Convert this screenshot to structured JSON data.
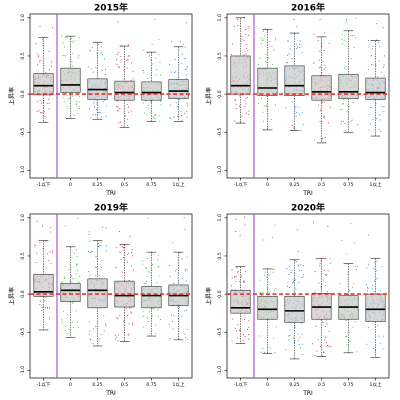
{
  "figure": {
    "colors": {
      "red": "#d2353f",
      "green": "#3fbf3f",
      "blue": "#2f8bd8",
      "box_fill": "#c8c8c8",
      "reference_line": "#e8342c",
      "threshold_line": "#a64ac9"
    }
  },
  "chart_data": [
    {
      "type": "box",
      "title": "2015年",
      "xlabel": "TRI",
      "ylabel": "上昇率",
      "categories": [
        "-1以下",
        "0",
        "0.25",
        "0.5",
        "0.75",
        "1以上"
      ],
      "yticks": [
        "-1.0",
        "-0.5",
        "0.0",
        "0.5",
        "1.0"
      ],
      "ylim": [
        -1.1,
        1.05
      ],
      "reference_line": 0.0,
      "threshold_between": [
        "-1以下",
        "0"
      ],
      "boxes": [
        {
          "category": "-1以下",
          "whisker_low": -0.37,
          "q1": -0.01,
          "median": 0.11,
          "q3": 0.27,
          "whisker_high": 0.74
        },
        {
          "category": "0",
          "whisker_low": -0.32,
          "q1": 0.02,
          "median": 0.12,
          "q3": 0.34,
          "whisker_high": 0.76
        },
        {
          "category": "0.25",
          "whisker_low": -0.33,
          "q1": -0.07,
          "median": 0.06,
          "q3": 0.2,
          "whisker_high": 0.68
        },
        {
          "category": "0.5",
          "whisker_low": -0.44,
          "q1": -0.08,
          "median": 0.02,
          "q3": 0.17,
          "whisker_high": 0.63
        },
        {
          "category": "0.75",
          "whisker_low": -0.36,
          "q1": -0.08,
          "median": 0.02,
          "q3": 0.16,
          "whisker_high": 0.55
        },
        {
          "category": "1以上",
          "whisker_low": -0.36,
          "q1": -0.06,
          "median": 0.04,
          "q3": 0.19,
          "whisker_high": 0.62
        }
      ]
    },
    {
      "type": "box",
      "title": "2016年",
      "xlabel": "TRI",
      "ylabel": "上昇率",
      "categories": [
        "-1以下",
        "0",
        "0.25",
        "0.5",
        "0.75",
        "1以上"
      ],
      "yticks": [
        "-1.0",
        "-0.5",
        "0.0",
        "0.5",
        "1.0"
      ],
      "ylim": [
        -1.1,
        1.05
      ],
      "reference_line": 0.0,
      "threshold_between": [
        "-1以下",
        "0"
      ],
      "boxes": [
        {
          "category": "-1以下",
          "whisker_low": -0.38,
          "q1": 0.0,
          "median": 0.11,
          "q3": 0.5,
          "whisker_high": 1.0
        },
        {
          "category": "0",
          "whisker_low": -0.47,
          "q1": -0.02,
          "median": 0.08,
          "q3": 0.34,
          "whisker_high": 0.85
        },
        {
          "category": "0.25",
          "whisker_low": -0.48,
          "q1": -0.02,
          "median": 0.11,
          "q3": 0.37,
          "whisker_high": 0.8
        },
        {
          "category": "0.5",
          "whisker_low": -0.64,
          "q1": -0.08,
          "median": 0.03,
          "q3": 0.24,
          "whisker_high": 0.75
        },
        {
          "category": "0.75",
          "whisker_low": -0.5,
          "q1": -0.06,
          "median": 0.03,
          "q3": 0.26,
          "whisker_high": 0.83
        },
        {
          "category": "1以上",
          "whisker_low": -0.55,
          "q1": -0.07,
          "median": 0.02,
          "q3": 0.21,
          "whisker_high": 0.7
        }
      ]
    },
    {
      "type": "box",
      "title": "2019年",
      "xlabel": "TRI",
      "ylabel": "上昇率",
      "categories": [
        "-1以下",
        "0",
        "0.25",
        "0.5",
        "0.75",
        "1以上"
      ],
      "yticks": [
        "-1.0",
        "-0.5",
        "0.0",
        "0.5",
        "1.0"
      ],
      "ylim": [
        -1.1,
        1.05
      ],
      "reference_line": 0.0,
      "threshold_between": [
        "-1以下",
        "0"
      ],
      "boxes": [
        {
          "category": "-1以下",
          "whisker_low": -0.47,
          "q1": -0.03,
          "median": 0.03,
          "q3": 0.26,
          "whisker_high": 0.7
        },
        {
          "category": "0",
          "whisker_low": -0.57,
          "q1": -0.1,
          "median": 0.05,
          "q3": 0.14,
          "whisker_high": 0.62
        },
        {
          "category": "0.25",
          "whisker_low": -0.68,
          "q1": -0.18,
          "median": 0.05,
          "q3": 0.2,
          "whisker_high": 0.7
        },
        {
          "category": "0.5",
          "whisker_low": -0.62,
          "q1": -0.17,
          "median": -0.02,
          "q3": 0.17,
          "whisker_high": 0.65
        },
        {
          "category": "0.75",
          "whisker_low": -0.55,
          "q1": -0.18,
          "median": -0.02,
          "q3": 0.1,
          "whisker_high": 0.55
        },
        {
          "category": "1以上",
          "whisker_low": -0.6,
          "q1": -0.15,
          "median": -0.02,
          "q3": 0.12,
          "whisker_high": 0.55
        }
      ]
    },
    {
      "type": "box",
      "title": "2020年",
      "xlabel": "TRI",
      "ylabel": "上昇率",
      "categories": [
        "-1以下",
        "0",
        "0.25",
        "0.5",
        "0.75",
        "1以上"
      ],
      "yticks": [
        "-1.0",
        "-0.5",
        "0.0",
        "0.5",
        "1.0"
      ],
      "ylim": [
        -1.1,
        1.05
      ],
      "reference_line": 0.0,
      "threshold_between": [
        "-1以下",
        "0"
      ],
      "boxes": [
        {
          "category": "-1以下",
          "whisker_low": -0.65,
          "q1": -0.25,
          "median": -0.18,
          "q3": 0.05,
          "whisker_high": 0.36
        },
        {
          "category": "0",
          "whisker_low": -0.78,
          "q1": -0.33,
          "median": -0.2,
          "q3": -0.03,
          "whisker_high": 0.33
        },
        {
          "category": "0.25",
          "whisker_low": -0.85,
          "q1": -0.37,
          "median": -0.22,
          "q3": -0.03,
          "whisker_high": 0.45
        },
        {
          "category": "0.5",
          "whisker_low": -0.82,
          "q1": -0.33,
          "median": -0.17,
          "q3": 0.01,
          "whisker_high": 0.47
        },
        {
          "category": "0.75",
          "whisker_low": -0.77,
          "q1": -0.33,
          "median": -0.17,
          "q3": -0.02,
          "whisker_high": 0.4
        },
        {
          "category": "1以上",
          "whisker_low": -0.83,
          "q1": -0.36,
          "median": -0.2,
          "q3": 0.0,
          "whisker_high": 0.47
        }
      ]
    }
  ]
}
